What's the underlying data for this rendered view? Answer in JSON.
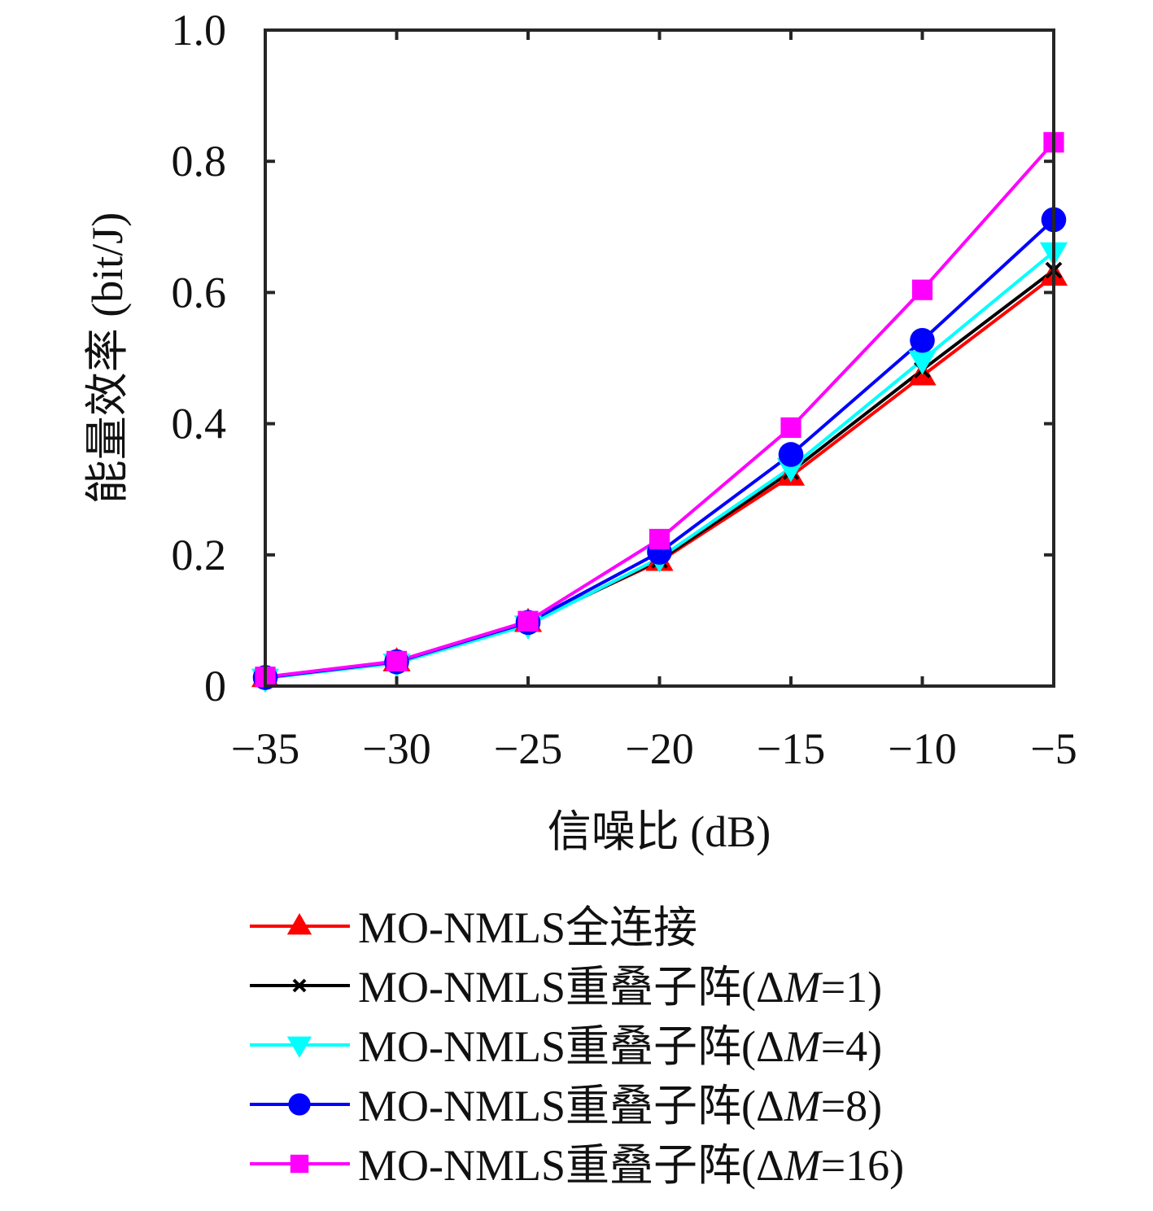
{
  "chart_data": {
    "type": "line",
    "title": "",
    "xlabel": "信噪比 (dB)",
    "ylabel": "能量效率 (bit/J)",
    "x": [
      -35,
      -30,
      -25,
      -20,
      -15,
      -10,
      -5
    ],
    "xlim": [
      -35,
      -5
    ],
    "ylim": [
      0,
      1.0
    ],
    "xticks": [
      -35,
      -30,
      -25,
      -20,
      -15,
      -10,
      -5
    ],
    "xtick_labels": [
      "−35",
      "−30",
      "−25",
      "−20",
      "−15",
      "−10",
      "−5"
    ],
    "yticks": [
      0,
      0.2,
      0.4,
      0.6,
      0.8,
      1.0
    ],
    "ytick_labels": [
      "0",
      "0.2",
      "0.4",
      "0.6",
      "0.8",
      "1.0"
    ],
    "grid": false,
    "legend_position": "below",
    "series": [
      {
        "name": "MO-NMLS全连接",
        "color": "#ff0000",
        "marker": "triangle-up",
        "values": [
          0.013,
          0.037,
          0.097,
          0.19,
          0.32,
          0.473,
          0.625
        ]
      },
      {
        "name": "MO-NMLS重叠子阵(ΔM=1)",
        "color": "#000000",
        "marker": "x",
        "values": [
          0.013,
          0.037,
          0.095,
          0.192,
          0.327,
          0.482,
          0.634
        ]
      },
      {
        "name": "MO-NMLS重叠子阵(ΔM=4)",
        "color": "#00ffff",
        "marker": "triangle-down",
        "values": [
          0.012,
          0.035,
          0.093,
          0.195,
          0.333,
          0.497,
          0.662
        ]
      },
      {
        "name": "MO-NMLS重叠子阵(ΔM=8)",
        "color": "#0000ff",
        "marker": "circle",
        "values": [
          0.013,
          0.037,
          0.097,
          0.204,
          0.353,
          0.527,
          0.711
        ]
      },
      {
        "name": "MO-NMLS重叠子阵(ΔM=16)",
        "color": "#ff00ff",
        "marker": "square",
        "values": [
          0.014,
          0.038,
          0.099,
          0.224,
          0.394,
          0.604,
          0.829
        ]
      }
    ],
    "legend_labels": [
      {
        "prefix": "MO-NMLS全连接",
        "math": ""
      },
      {
        "prefix": "MO-NMLS重叠子阵(Δ",
        "italic": "M",
        "suffix": "=1)"
      },
      {
        "prefix": "MO-NMLS重叠子阵(Δ",
        "italic": "M",
        "suffix": "=4)"
      },
      {
        "prefix": "MO-NMLS重叠子阵(Δ",
        "italic": "M",
        "suffix": "=8)"
      },
      {
        "prefix": "MO-NMLS重叠子阵(Δ",
        "italic": "M",
        "suffix": "=16)"
      }
    ]
  }
}
